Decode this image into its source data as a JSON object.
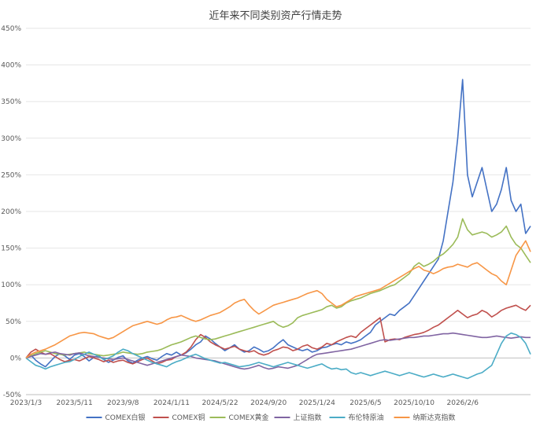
{
  "chart_data": {
    "type": "line",
    "title": "近年来不同类别资产行情走势",
    "xlabel": "",
    "ylabel": "",
    "ylim": [
      -50,
      450
    ],
    "y_ticks": [
      -50,
      0,
      50,
      100,
      150,
      200,
      250,
      300,
      350,
      400,
      450
    ],
    "y_tick_labels": [
      "-50%",
      "0%",
      "50%",
      "100%",
      "150%",
      "200%",
      "250%",
      "300%",
      "350%",
      "400%",
      "450%"
    ],
    "x_tick_labels": [
      "2023/1/3",
      "2023/5/11",
      "2023/9/8",
      "2024/1/11",
      "2024/5/22",
      "2024/9/20",
      "2025/1/24",
      "2025/6/5",
      "2025/10/10",
      "2026/2/6"
    ],
    "x_tick_index": [
      0,
      10,
      20,
      30,
      40,
      50,
      60,
      70,
      80,
      90
    ],
    "x_count": 105,
    "grid": true,
    "legend_position": "bottom",
    "series": [
      {
        "name": "COMEX白银",
        "color": "#4472c4",
        "values": [
          0,
          4,
          -3,
          -8,
          -12,
          -5,
          2,
          6,
          3,
          -2,
          4,
          6,
          2,
          -4,
          1,
          3,
          -2,
          -6,
          -3,
          1,
          3,
          -4,
          -7,
          -3,
          0,
          2,
          -1,
          -3,
          2,
          6,
          4,
          8,
          4,
          7,
          12,
          18,
          22,
          30,
          26,
          20,
          15,
          10,
          14,
          18,
          12,
          8,
          10,
          15,
          12,
          8,
          10,
          14,
          20,
          25,
          18,
          15,
          12,
          10,
          12,
          8,
          10,
          14,
          15,
          18,
          20,
          18,
          22,
          20,
          22,
          25,
          30,
          35,
          45,
          50,
          55,
          60,
          58,
          65,
          70,
          75,
          85,
          95,
          105,
          115,
          125,
          135,
          160,
          200,
          240,
          300,
          380,
          250,
          220,
          240,
          260,
          230,
          200,
          210,
          230,
          260,
          215,
          200,
          210,
          170,
          180
        ]
      },
      {
        "name": "COMEX铜",
        "color": "#c0504d",
        "values": [
          0,
          8,
          12,
          8,
          5,
          6,
          2,
          -2,
          -5,
          -3,
          -2,
          -4,
          -1,
          2,
          0,
          -2,
          -5,
          -3,
          -6,
          -4,
          -3,
          -6,
          -8,
          -5,
          -2,
          0,
          -4,
          -8,
          -6,
          -3,
          -2,
          2,
          4,
          8,
          15,
          25,
          32,
          28,
          22,
          18,
          15,
          12,
          14,
          16,
          12,
          10,
          8,
          10,
          6,
          4,
          6,
          10,
          12,
          15,
          14,
          10,
          12,
          16,
          18,
          14,
          12,
          15,
          20,
          18,
          22,
          25,
          28,
          30,
          28,
          35,
          40,
          45,
          50,
          55,
          22,
          25,
          26,
          25,
          28,
          30,
          32,
          33,
          35,
          38,
          42,
          45,
          50,
          55,
          60,
          65,
          60,
          55,
          58,
          60,
          65,
          62,
          56,
          60,
          65,
          68,
          70,
          72,
          68,
          65,
          72
        ]
      },
      {
        "name": "COMEX黄金",
        "color": "#9bbb59",
        "values": [
          0,
          3,
          6,
          8,
          10,
          8,
          6,
          5,
          4,
          5,
          6,
          7,
          8,
          6,
          5,
          4,
          3,
          4,
          5,
          6,
          8,
          7,
          6,
          5,
          6,
          8,
          9,
          10,
          12,
          15,
          18,
          20,
          22,
          25,
          28,
          30,
          28,
          26,
          25,
          26,
          28,
          30,
          32,
          34,
          36,
          38,
          40,
          42,
          44,
          46,
          48,
          50,
          45,
          42,
          44,
          48,
          55,
          58,
          60,
          62,
          64,
          66,
          70,
          72,
          68,
          70,
          75,
          78,
          80,
          82,
          85,
          88,
          90,
          92,
          95,
          98,
          100,
          105,
          110,
          115,
          125,
          130,
          125,
          128,
          132,
          138,
          142,
          148,
          155,
          165,
          190,
          175,
          168,
          170,
          172,
          170,
          165,
          168,
          172,
          180,
          165,
          155,
          150,
          140,
          130
        ]
      },
      {
        "name": "上证指数",
        "color": "#8064a2",
        "values": [
          0,
          2,
          4,
          6,
          5,
          7,
          8,
          6,
          5,
          4,
          6,
          7,
          5,
          3,
          2,
          1,
          0,
          -1,
          -2,
          -1,
          0,
          -2,
          -4,
          -6,
          -8,
          -10,
          -8,
          -6,
          -4,
          -2,
          0,
          2,
          4,
          3,
          2,
          0,
          -1,
          -2,
          -3,
          -4,
          -6,
          -8,
          -10,
          -12,
          -14,
          -15,
          -14,
          -12,
          -10,
          -13,
          -15,
          -14,
          -12,
          -13,
          -14,
          -12,
          -10,
          -6,
          -2,
          2,
          5,
          6,
          7,
          8,
          9,
          10,
          11,
          12,
          14,
          16,
          18,
          20,
          22,
          24,
          25,
          24,
          25,
          26,
          27,
          28,
          28,
          29,
          30,
          30,
          31,
          32,
          33,
          33,
          34,
          33,
          32,
          31,
          30,
          29,
          28,
          28,
          29,
          30,
          29,
          28,
          27,
          28,
          29,
          28,
          28
        ]
      },
      {
        "name": "布伦特原油",
        "color": "#4bacc6",
        "values": [
          0,
          -5,
          -10,
          -12,
          -15,
          -12,
          -10,
          -8,
          -6,
          -5,
          -2,
          2,
          5,
          8,
          5,
          2,
          -2,
          0,
          3,
          8,
          12,
          10,
          6,
          3,
          0,
          -3,
          -6,
          -8,
          -10,
          -12,
          -8,
          -5,
          -3,
          0,
          3,
          5,
          2,
          -1,
          -3,
          -5,
          -7,
          -6,
          -8,
          -10,
          -12,
          -11,
          -10,
          -8,
          -6,
          -8,
          -10,
          -12,
          -10,
          -8,
          -6,
          -8,
          -10,
          -12,
          -14,
          -12,
          -10,
          -8,
          -12,
          -15,
          -14,
          -16,
          -15,
          -20,
          -22,
          -20,
          -22,
          -24,
          -22,
          -20,
          -18,
          -20,
          -22,
          -24,
          -22,
          -20,
          -22,
          -24,
          -26,
          -24,
          -22,
          -24,
          -26,
          -24,
          -22,
          -24,
          -26,
          -28,
          -25,
          -22,
          -20,
          -15,
          -10,
          5,
          20,
          30,
          34,
          32,
          28,
          20,
          5
        ]
      },
      {
        "name": "纳斯达克指数",
        "color": "#f79646",
        "values": [
          0,
          5,
          8,
          10,
          12,
          15,
          18,
          22,
          26,
          30,
          32,
          34,
          35,
          34,
          33,
          30,
          28,
          26,
          28,
          32,
          36,
          40,
          44,
          46,
          48,
          50,
          48,
          46,
          48,
          52,
          55,
          56,
          58,
          55,
          52,
          50,
          52,
          55,
          58,
          60,
          62,
          66,
          70,
          75,
          78,
          80,
          72,
          65,
          60,
          64,
          68,
          72,
          74,
          76,
          78,
          80,
          82,
          85,
          88,
          90,
          92,
          88,
          80,
          75,
          70,
          72,
          76,
          80,
          84,
          86,
          88,
          90,
          92,
          94,
          98,
          102,
          106,
          110,
          114,
          118,
          122,
          125,
          120,
          118,
          115,
          118,
          122,
          124,
          125,
          128,
          126,
          124,
          128,
          130,
          125,
          120,
          115,
          112,
          105,
          100,
          120,
          140,
          150,
          160,
          145
        ]
      }
    ]
  }
}
